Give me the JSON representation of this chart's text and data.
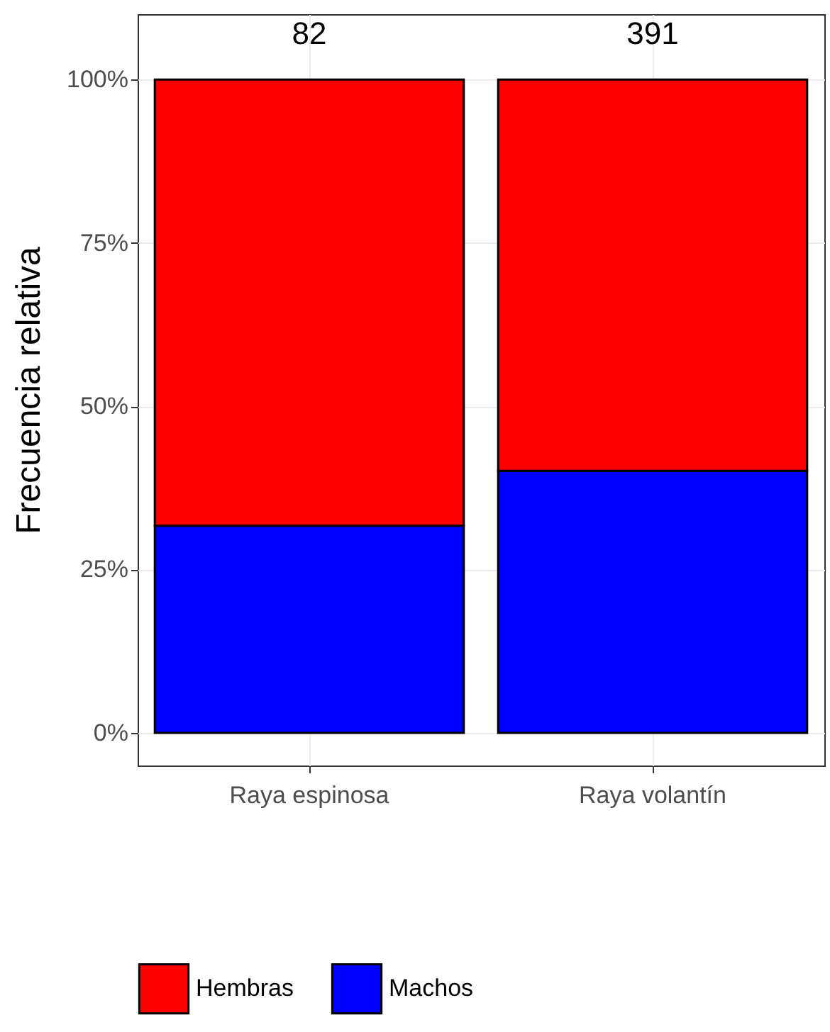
{
  "chart_data": {
    "type": "bar",
    "ylabel": "Frecuencia relativa",
    "categories": [
      "Raya espinosa",
      "Raya volantín"
    ],
    "series": [
      {
        "name": "Machos",
        "color": "#0000ff",
        "values": [
          31.7,
          40.1
        ]
      },
      {
        "name": "Hembras",
        "color": "#ff0000",
        "values": [
          68.3,
          59.9
        ]
      }
    ],
    "stacked": true,
    "ylim": [
      -5,
      110
    ],
    "yticks": [
      {
        "value": 0,
        "label": "0%"
      },
      {
        "value": 25,
        "label": "25%"
      },
      {
        "value": 50,
        "label": "50%"
      },
      {
        "value": 75,
        "label": "75%"
      },
      {
        "value": 100,
        "label": "100%"
      }
    ],
    "grid": true,
    "legend": "bottom",
    "annotations": [
      {
        "text": "82",
        "x": "Raya espinosa",
        "y": 100
      },
      {
        "text": "391",
        "x": "Raya volantín",
        "y": 100
      }
    ]
  }
}
